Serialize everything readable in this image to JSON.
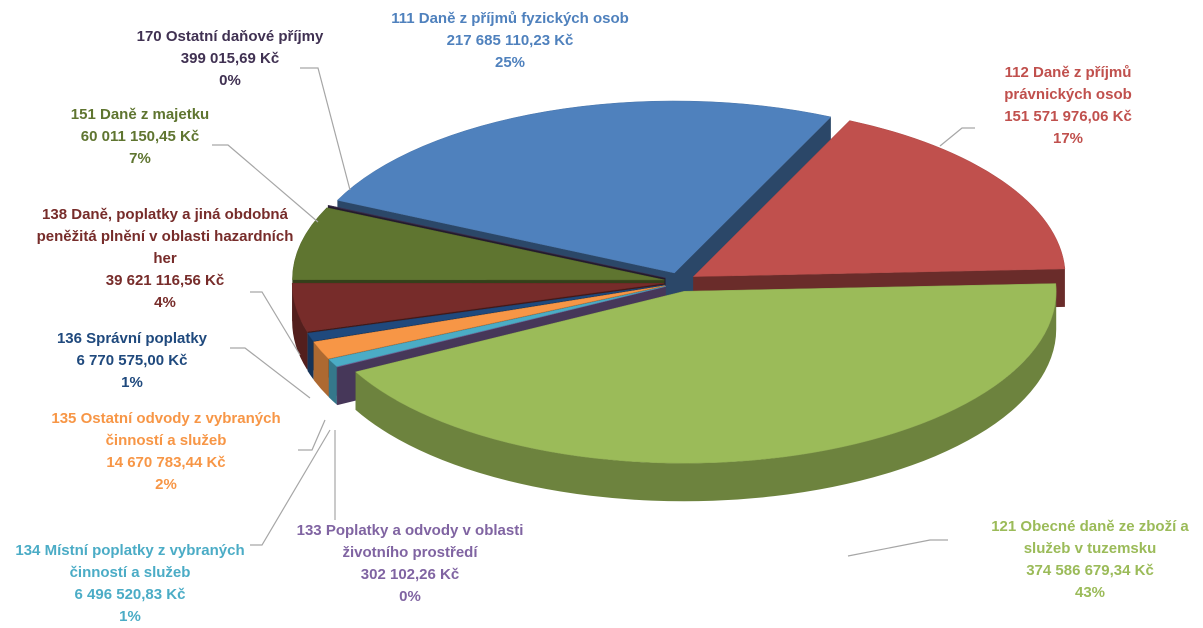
{
  "chart_data": {
    "type": "pie",
    "categories": [
      "111 Daně z příjmů fyzických osob",
      "112 Daně z příjmů právnických osob",
      "121 Obecné daně ze zboží a služeb v tuzemsku",
      "133 Poplatky a odvody v oblasti  životního prostředí",
      "134 Místní poplatky z vybraných činností a služeb",
      "135 Ostatní odvody z vybraných činností a služeb",
      "136 Správní poplatky",
      "138 Daně, poplatky a jiná obdobná peněžitá plnění v oblasti hazardních her",
      "151 Daně z majetku",
      "170 Ostatní daňové příjmy"
    ],
    "values": [
      217685110.23,
      151571976.06,
      374586679.34,
      302102.26,
      6496520.83,
      14670783.44,
      6770575.0,
      39621116.56,
      60011150.45,
      399015.69
    ],
    "value_labels": [
      "217 685 110,23 Kč",
      "151 571 976,06 Kč",
      "374 586 679,34 Kč",
      "302 102,26 Kč",
      "6 496 520,83 Kč",
      "14 670 783,44 Kč",
      "6 770 575,00 Kč",
      "39 621 116,56 Kč",
      "60 011 150,45 Kč",
      "399 015,69 Kč"
    ],
    "percent_labels": [
      "25%",
      "17%",
      "43%",
      "0%",
      "1%",
      "2%",
      "1%",
      "4%",
      "7%",
      "0%"
    ],
    "colors": [
      "#4f81bd",
      "#c0504d",
      "#9bbb59",
      "#8064a2",
      "#4bacc6",
      "#f79646",
      "#1f497d",
      "#772c2a",
      "#5f7530",
      "#403152"
    ]
  }
}
